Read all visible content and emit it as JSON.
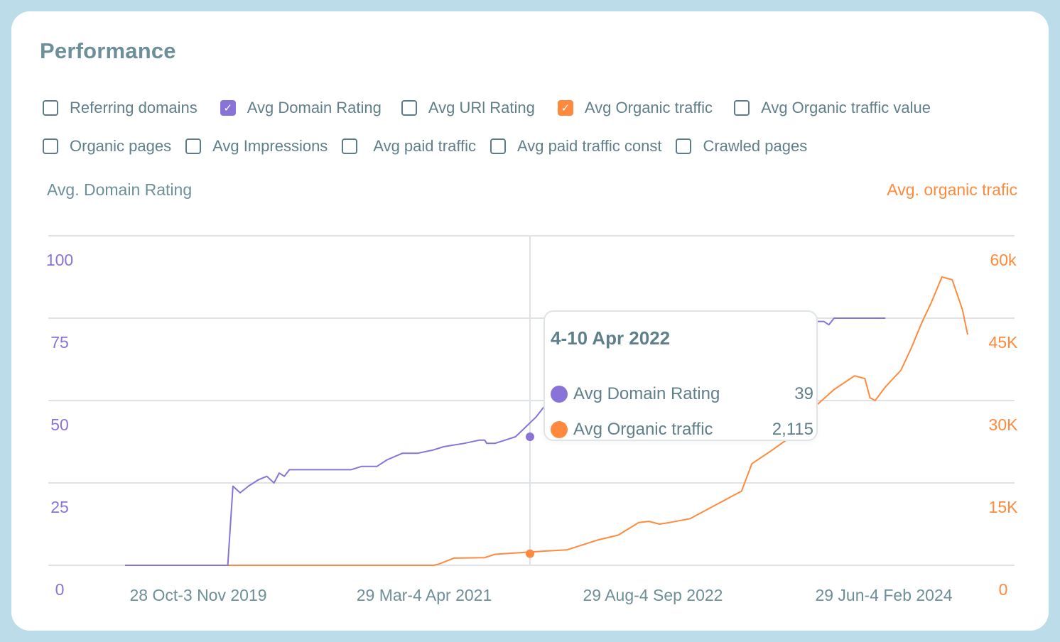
{
  "title": "Performance",
  "filters": {
    "row1": [
      {
        "label": "Referring domains",
        "checked": false
      },
      {
        "label": "Avg Domain Rating",
        "checked": true,
        "color": "#8a73d8"
      },
      {
        "label": "Avg URl Rating",
        "checked": false
      },
      {
        "label": "Avg Organic traffic",
        "checked": true,
        "color": "#ff8a3d"
      },
      {
        "label": "Avg Organic traffic value",
        "checked": false
      }
    ],
    "row2": [
      {
        "label": "Organic pages",
        "checked": false
      },
      {
        "label": "Avg Impressions",
        "checked": false
      },
      {
        "label": "Avg paid traffic",
        "checked": false
      },
      {
        "label": "Avg paid traffic const",
        "checked": false
      },
      {
        "label": "Crawled pages",
        "checked": false
      }
    ]
  },
  "axes": {
    "left_title": "Avg. Domain Rating",
    "right_title": "Avg. organic trafic"
  },
  "tooltip": {
    "date": "4-10 Apr 2022",
    "rows": [
      {
        "label": "Avg Domain Rating",
        "value": "39",
        "color": "#8a73d8"
      },
      {
        "label": "Avg Organic traffic",
        "value": "2,115",
        "color": "#ff8a3d"
      }
    ]
  },
  "chart_data": {
    "type": "line",
    "colors": {
      "domain_rating": "#8a73d8",
      "organic_traffic": "#ff8a3d"
    },
    "x_tick_labels": [
      "28 Oct-3 Nov 2019",
      "29 Mar-4 Apr 2021",
      "29 Aug-4 Sep 2022",
      "29 Jun-4 Feb 2024"
    ],
    "y_left": {
      "ticks": [
        "0",
        "25",
        "50",
        "75",
        "100"
      ],
      "values": [
        0,
        25,
        50,
        75,
        100
      ],
      "lim": [
        0,
        100
      ]
    },
    "y_right": {
      "ticks": [
        "0",
        "15K",
        "30K",
        "45K",
        "60k"
      ],
      "values": [
        0,
        15000,
        30000,
        45000,
        60000
      ],
      "lim": [
        0,
        60000
      ]
    },
    "grid": true,
    "highlight": {
      "label": "4-10 Apr 2022",
      "domain_rating": 39,
      "organic_traffic": 2115
    },
    "series": [
      {
        "name": "Avg Domain Rating",
        "axis": "left",
        "points": [
          [
            0,
            0
          ],
          [
            0.3,
            0
          ],
          [
            0.6,
            0
          ],
          [
            0.95,
            0
          ],
          [
            1.0,
            0
          ],
          [
            1.05,
            24
          ],
          [
            1.12,
            22
          ],
          [
            1.2,
            24
          ],
          [
            1.3,
            26
          ],
          [
            1.38,
            27
          ],
          [
            1.45,
            25
          ],
          [
            1.5,
            28
          ],
          [
            1.55,
            27
          ],
          [
            1.6,
            29
          ],
          [
            1.8,
            29
          ],
          [
            2.0,
            29
          ],
          [
            2.2,
            29
          ],
          [
            2.3,
            30
          ],
          [
            2.45,
            30
          ],
          [
            2.55,
            32
          ],
          [
            2.7,
            34
          ],
          [
            2.85,
            34
          ],
          [
            3.0,
            35
          ],
          [
            3.1,
            36
          ],
          [
            3.3,
            37
          ],
          [
            3.45,
            38
          ],
          [
            3.5,
            38
          ],
          [
            3.52,
            37
          ],
          [
            3.6,
            37
          ],
          [
            3.7,
            38
          ],
          [
            3.8,
            39
          ],
          [
            3.9,
            42
          ],
          [
            4.0,
            45
          ],
          [
            4.1,
            49
          ],
          [
            4.3,
            53
          ],
          [
            4.6,
            57
          ],
          [
            4.9,
            61
          ],
          [
            5.1,
            64
          ],
          [
            5.3,
            67
          ],
          [
            5.5,
            70
          ],
          [
            5.7,
            72
          ],
          [
            5.9,
            73
          ],
          [
            6.1,
            73
          ],
          [
            6.3,
            74
          ],
          [
            6.6,
            74
          ],
          [
            6.8,
            74
          ],
          [
            6.85,
            73
          ],
          [
            6.9,
            75
          ],
          [
            7.2,
            75
          ],
          [
            7.4,
            75
          ]
        ]
      },
      {
        "name": "Avg Organic traffic",
        "axis": "right",
        "points": [
          [
            0,
            0
          ],
          [
            1.0,
            0
          ],
          [
            2.0,
            0
          ],
          [
            3.0,
            0
          ],
          [
            3.05,
            0.2
          ],
          [
            3.2,
            1.3
          ],
          [
            3.5,
            1.4
          ],
          [
            3.6,
            2.0
          ],
          [
            4.0,
            2.5
          ],
          [
            4.3,
            2.8
          ],
          [
            4.6,
            4.6
          ],
          [
            4.8,
            5.5
          ],
          [
            5.0,
            7.8
          ],
          [
            5.1,
            8.0
          ],
          [
            5.2,
            7.5
          ],
          [
            5.3,
            7.8
          ],
          [
            5.5,
            8.5
          ],
          [
            5.7,
            10.5
          ],
          [
            5.9,
            12.5
          ],
          [
            6.0,
            13.5
          ],
          [
            6.1,
            18.5
          ],
          [
            6.3,
            21.0
          ],
          [
            6.45,
            23.0
          ],
          [
            6.6,
            27.0
          ],
          [
            6.75,
            29.5
          ],
          [
            6.9,
            32.0
          ],
          [
            7.1,
            34.5
          ],
          [
            7.2,
            34.0
          ],
          [
            7.25,
            30.5
          ],
          [
            7.3,
            30.0
          ],
          [
            7.4,
            32.5
          ],
          [
            7.55,
            35.5
          ],
          [
            7.65,
            39.5
          ],
          [
            7.75,
            44.0
          ],
          [
            7.85,
            48.0
          ],
          [
            7.95,
            52.5
          ],
          [
            8.05,
            52.0
          ],
          [
            8.15,
            46.5
          ],
          [
            8.2,
            42.0
          ]
        ]
      }
    ]
  }
}
